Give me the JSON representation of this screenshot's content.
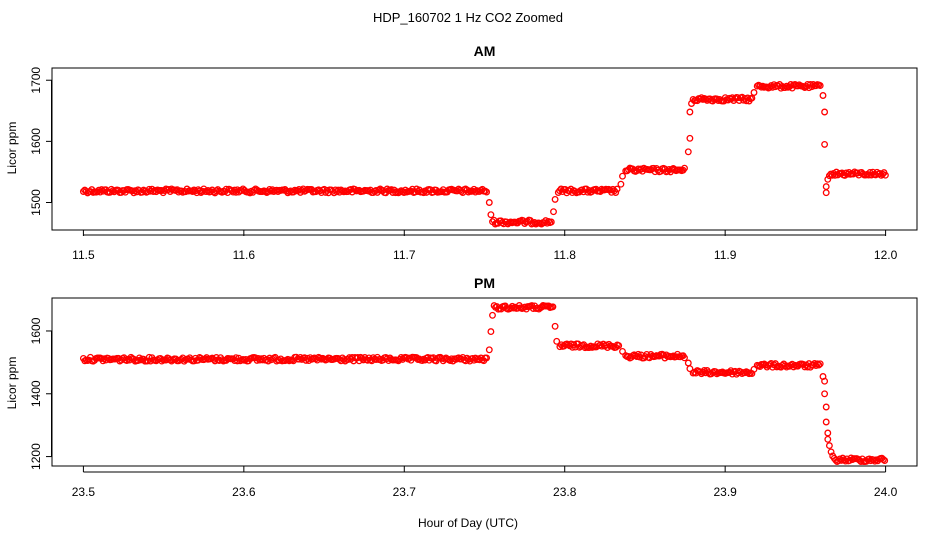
{
  "figure": {
    "title": "HDP_160702  1 Hz CO2 Zoomed",
    "xlabel": "Hour of Day (UTC)",
    "point_color": "#ff0000"
  },
  "chart_data": [
    {
      "type": "scatter",
      "title": "AM",
      "xlabel": "",
      "ylabel": "Licor ppm",
      "xlim": [
        11.5,
        12.0
      ],
      "ylim": [
        1455,
        1720
      ],
      "xticks": [
        "11.5",
        "11.6",
        "11.7",
        "11.8",
        "11.9",
        "12.0"
      ],
      "yticks": [
        "1500",
        "1600",
        "1700"
      ],
      "marker": "open-circle",
      "color": "#ff0000",
      "segments": [
        {
          "x": [
            11.5,
            11.752
          ],
          "y": 1519
        },
        {
          "x": [
            11.755,
            11.792
          ],
          "y": 1468
        },
        {
          "x": [
            11.796,
            11.833
          ],
          "y": 1519
        },
        {
          "x": [
            11.838,
            11.875
          ],
          "y": 1553
        },
        {
          "x": [
            11.88,
            11.917
          ],
          "y": 1669
        },
        {
          "x": [
            11.92,
            11.96
          ],
          "y": 1690
        },
        {
          "x": [
            11.965,
            12.0
          ],
          "y": 1547
        }
      ],
      "transitions": [
        {
          "x": 11.753,
          "y": 1500
        },
        {
          "x": 11.754,
          "y": 1480
        },
        {
          "x": 11.793,
          "y": 1485
        },
        {
          "x": 11.794,
          "y": 1505
        },
        {
          "x": 11.835,
          "y": 1530
        },
        {
          "x": 11.836,
          "y": 1543
        },
        {
          "x": 11.877,
          "y": 1583
        },
        {
          "x": 11.878,
          "y": 1605
        },
        {
          "x": 11.878,
          "y": 1648
        },
        {
          "x": 11.879,
          "y": 1662
        },
        {
          "x": 11.918,
          "y": 1680
        },
        {
          "x": 11.961,
          "y": 1675
        },
        {
          "x": 11.962,
          "y": 1648
        },
        {
          "x": 11.962,
          "y": 1595
        },
        {
          "x": 11.963,
          "y": 1526
        },
        {
          "x": 11.963,
          "y": 1516
        },
        {
          "x": 11.964,
          "y": 1538
        }
      ]
    },
    {
      "type": "scatter",
      "title": "PM",
      "xlabel": "Hour of Day (UTC)",
      "ylabel": "Licor ppm",
      "xlim": [
        23.5,
        24.0
      ],
      "ylim": [
        1170,
        1705
      ],
      "xticks": [
        "23.5",
        "23.6",
        "23.7",
        "23.8",
        "23.9",
        "24.0"
      ],
      "yticks": [
        "1200",
        "1400",
        "1600"
      ],
      "marker": "open-circle",
      "color": "#ff0000",
      "segments": [
        {
          "x": [
            23.5,
            23.752
          ],
          "y": 1510
        },
        {
          "x": [
            23.756,
            23.793
          ],
          "y": 1675
        },
        {
          "x": [
            23.797,
            23.834
          ],
          "y": 1553
        },
        {
          "x": [
            23.838,
            23.875
          ],
          "y": 1520
        },
        {
          "x": [
            23.88,
            23.917
          ],
          "y": 1468
        },
        {
          "x": [
            23.92,
            23.96
          ],
          "y": 1490
        },
        {
          "x": [
            23.968,
            24.0
          ],
          "y": 1190
        }
      ],
      "transitions": [
        {
          "x": 23.753,
          "y": 1540
        },
        {
          "x": 23.754,
          "y": 1598
        },
        {
          "x": 23.755,
          "y": 1650
        },
        {
          "x": 23.794,
          "y": 1615
        },
        {
          "x": 23.795,
          "y": 1567
        },
        {
          "x": 23.836,
          "y": 1535
        },
        {
          "x": 23.877,
          "y": 1498
        },
        {
          "x": 23.878,
          "y": 1480
        },
        {
          "x": 23.918,
          "y": 1478
        },
        {
          "x": 23.961,
          "y": 1455
        },
        {
          "x": 23.962,
          "y": 1440
        },
        {
          "x": 23.962,
          "y": 1400
        },
        {
          "x": 23.963,
          "y": 1358
        },
        {
          "x": 23.963,
          "y": 1310
        },
        {
          "x": 23.964,
          "y": 1275
        },
        {
          "x": 23.964,
          "y": 1255
        },
        {
          "x": 23.965,
          "y": 1235
        },
        {
          "x": 23.966,
          "y": 1215
        },
        {
          "x": 23.967,
          "y": 1202
        }
      ]
    }
  ]
}
